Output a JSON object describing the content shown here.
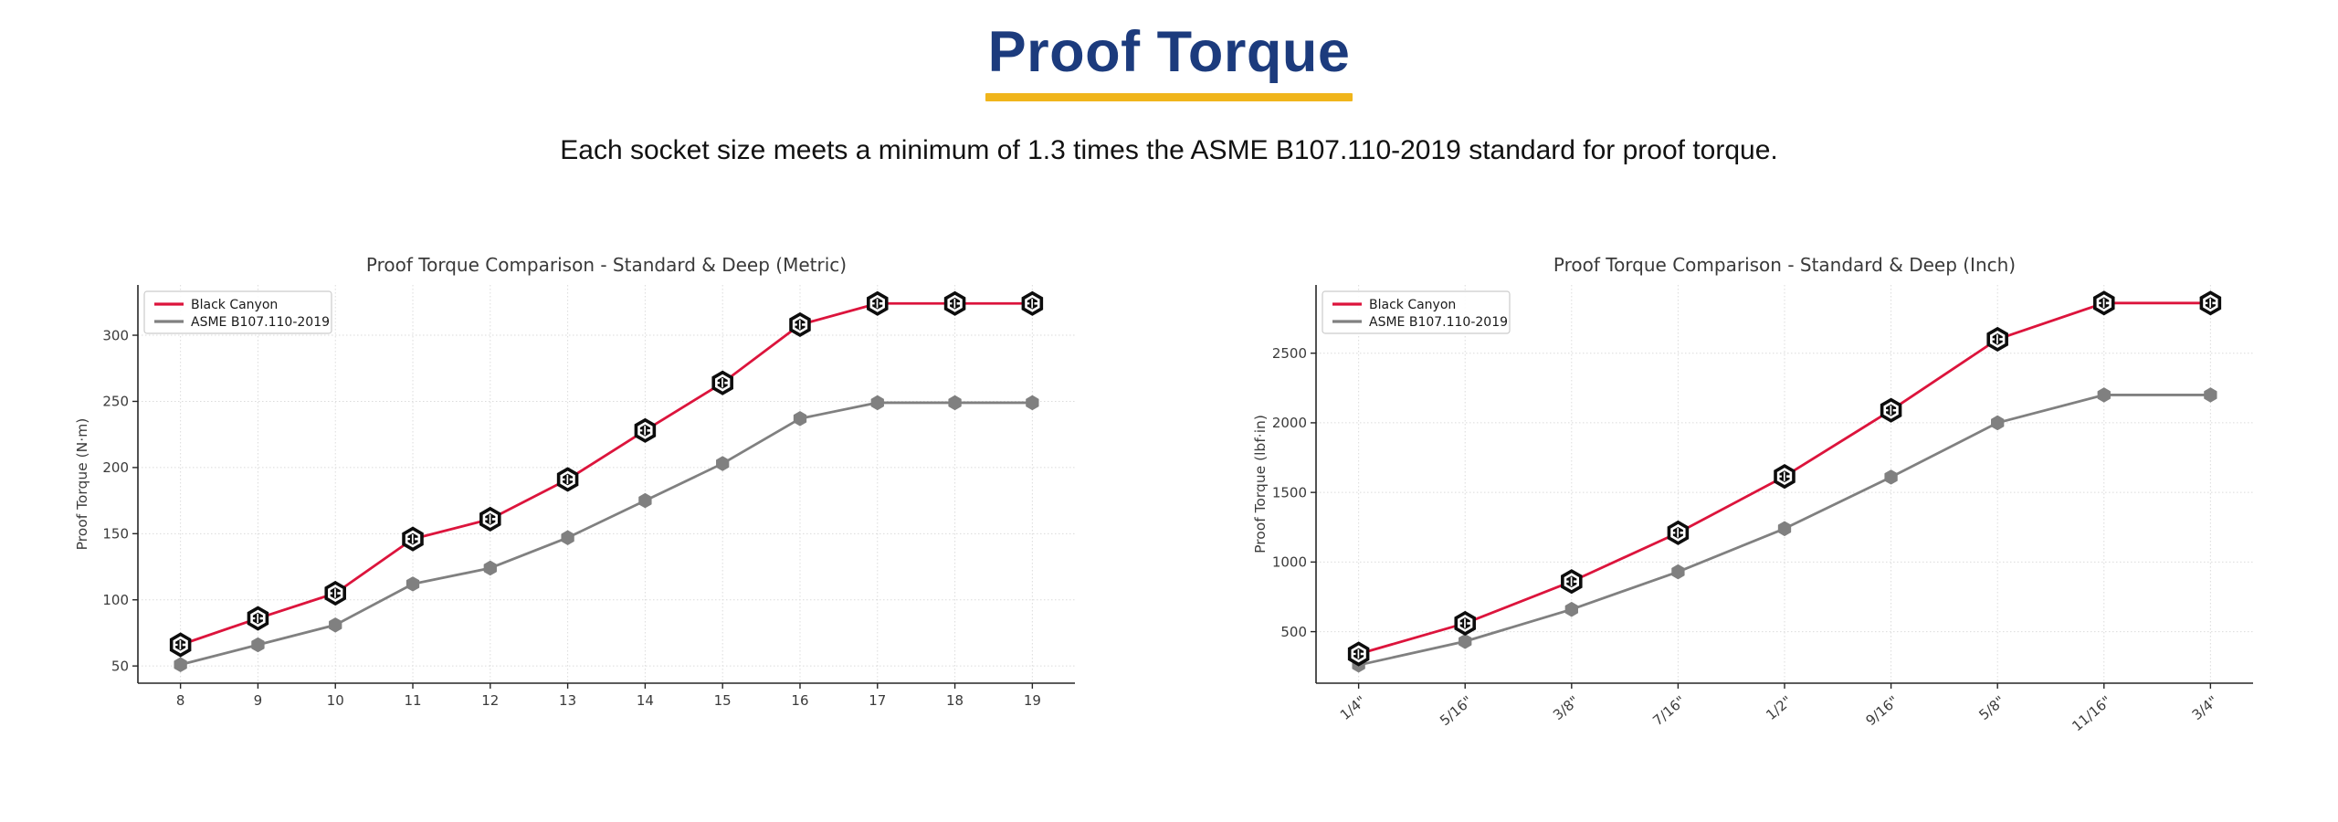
{
  "header": {
    "title": "Proof Torque",
    "subtitle": "Each socket size meets a minimum of 1.3 times the ASME B107.110-2019 standard for proof torque.",
    "title_color": "#1c3b7d",
    "accent_bar_color": "#f0b51b"
  },
  "chart_data": [
    {
      "type": "line",
      "title": "Proof Torque Comparison - Standard & Deep (Metric)",
      "xlabel": "",
      "ylabel": "Proof Torque (N·m)",
      "categories": [
        "8",
        "9",
        "10",
        "11",
        "12",
        "13",
        "14",
        "15",
        "16",
        "17",
        "18",
        "19"
      ],
      "series": [
        {
          "name": "Black Canyon",
          "color": "#dc143c",
          "marker": "hex-logo",
          "values": [
            66,
            86,
            105,
            146,
            161,
            191,
            228,
            264,
            308,
            324,
            324,
            324
          ]
        },
        {
          "name": "ASME B107.110-2019",
          "color": "#808080",
          "marker": "hex-solid",
          "values": [
            51,
            66,
            81,
            112,
            124,
            147,
            175,
            203,
            237,
            249,
            249,
            249
          ]
        }
      ],
      "yticks": [
        50,
        100,
        150,
        200,
        250,
        300
      ],
      "ylim": [
        37,
        338
      ],
      "grid": true,
      "legend_position": "upper-left",
      "x_tick_rotation": 0
    },
    {
      "type": "line",
      "title": "Proof Torque Comparison - Standard & Deep (Inch)",
      "xlabel": "",
      "ylabel": "Proof Torque (lbf·in)",
      "categories": [
        "1/4\"",
        "5/16\"",
        "3/8\"",
        "7/16\"",
        "1/2\"",
        "9/16\"",
        "5/8\"",
        "11/16\"",
        "3/4\""
      ],
      "series": [
        {
          "name": "Black Canyon",
          "color": "#dc143c",
          "marker": "hex-logo",
          "values": [
            340,
            560,
            860,
            1210,
            1615,
            2090,
            2600,
            2860,
            2860
          ]
        },
        {
          "name": "ASME B107.110-2019",
          "color": "#808080",
          "marker": "hex-solid",
          "values": [
            260,
            430,
            660,
            930,
            1240,
            1610,
            2000,
            2200,
            2200
          ]
        }
      ],
      "yticks": [
        500,
        1000,
        1500,
        2000,
        2500
      ],
      "ylim": [
        130,
        2990
      ],
      "grid": true,
      "legend_position": "upper-left",
      "x_tick_rotation": -40
    }
  ],
  "chart_theme": {
    "axis_color": "#262626",
    "tick_label_color": "#3b3b3b",
    "title_color": "#3a3a3a",
    "grid_color": "#d0d0d0"
  }
}
